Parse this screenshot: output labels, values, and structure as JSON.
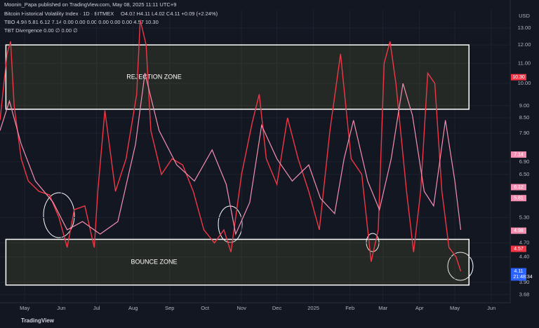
{
  "chart_data": {
    "type": "line",
    "header": {
      "publisher": "Moonin_Papa published on TradingView.com, May 08, 2025 11:11 UTC+9",
      "symbol": "Bitcoin Historical Volatility Index · 1D · BITMEX",
      "ohlc": "O4.02 H4.11 L4.02 C4.11 +0.09 (+2.24%)",
      "tbo": "TBO 4.98 5.81 6.12 7.14 0.00 0.00 0.00 0.00 0.00 0.00 4.57 10.30",
      "tbt": "TBT Divergence 0.00 ∅ 0.00 ∅"
    },
    "currency": "USD",
    "footer": "TradingView",
    "log_scale": true,
    "grid": true,
    "xlim": [
      0,
      433
    ],
    "ylim": [
      3.54,
      14.17
    ],
    "xticks": [
      {
        "value": 21,
        "label": "May"
      },
      {
        "value": 52,
        "label": "Jun"
      },
      {
        "value": 82,
        "label": "Jul"
      },
      {
        "value": 113,
        "label": "Aug"
      },
      {
        "value": 144,
        "label": "Sep"
      },
      {
        "value": 174,
        "label": "Oct"
      },
      {
        "value": 205,
        "label": "Nov"
      },
      {
        "value": 235,
        "label": "Dec"
      },
      {
        "value": 266,
        "label": "2025"
      },
      {
        "value": 297,
        "label": "Feb"
      },
      {
        "value": 325,
        "label": "Mar"
      },
      {
        "value": 356,
        "label": "Apr"
      },
      {
        "value": 386,
        "label": "May"
      },
      {
        "value": 417,
        "label": "Jun"
      }
    ],
    "yticks": [
      {
        "value": 3.68,
        "label": "3.68"
      },
      {
        "value": 3.9,
        "label": "3.90"
      },
      {
        "value": 4.4,
        "label": "4.40"
      },
      {
        "value": 4.7,
        "label": "4.70"
      },
      {
        "value": 5.3,
        "label": "5.30"
      },
      {
        "value": 6.5,
        "label": "6.50"
      },
      {
        "value": 6.9,
        "label": "6.90"
      },
      {
        "value": 7.9,
        "label": "7.90"
      },
      {
        "value": 8.5,
        "label": "8.50"
      },
      {
        "value": 9,
        "label": "9.00"
      },
      {
        "value": 10,
        "label": "10.00"
      },
      {
        "value": 11,
        "label": "11.00"
      },
      {
        "value": 12,
        "label": "12.00"
      },
      {
        "value": 13,
        "label": "13.00"
      }
    ],
    "zones": [
      {
        "label": "REJECTION ZONE",
        "x": [
          5,
          398
        ],
        "y": [
          8.85,
          12.0
        ]
      },
      {
        "label": "BOUNCE ZONE",
        "x": [
          5,
          398
        ],
        "y": [
          3.85,
          4.78
        ]
      }
    ],
    "series": [
      {
        "color": "#f23645",
        "x": [
          0,
          6,
          9,
          12,
          18,
          24,
          33,
          42,
          50,
          57,
          63,
          72,
          80,
          83,
          89,
          98,
          107,
          116,
          119,
          124,
          128,
          137,
          146,
          155,
          164,
          173,
          182,
          190,
          196,
          205,
          214,
          220,
          226,
          235,
          244,
          253,
          262,
          271,
          280,
          289,
          298,
          307,
          315,
          321,
          326,
          331,
          336,
          345,
          351,
          357,
          363,
          369,
          375,
          381,
          387,
          391
        ],
        "values": [
          8.4,
          11.5,
          12.2,
          9.0,
          7.0,
          6.3,
          6.0,
          5.9,
          5.3,
          4.6,
          5.5,
          5.6,
          4.6,
          6.0,
          8.8,
          6.0,
          7.0,
          9.5,
          13.5,
          12.0,
          8.0,
          6.5,
          7.0,
          6.8,
          6.0,
          5.0,
          4.7,
          5.0,
          4.5,
          6.5,
          8.3,
          9.5,
          7.0,
          6.2,
          8.5,
          7.0,
          6.0,
          5.0,
          8.0,
          11.5,
          7.0,
          6.5,
          4.3,
          5.0,
          11.0,
          12.2,
          10.0,
          6.0,
          4.5,
          6.0,
          10.5,
          10.0,
          6.0,
          4.6,
          4.4,
          4.11
        ]
      },
      {
        "color": "#f48fb1",
        "x": [
          0,
          8,
          18,
          30,
          45,
          57,
          70,
          85,
          100,
          115,
          123,
          135,
          150,
          165,
          180,
          192,
          200,
          212,
          222,
          235,
          248,
          262,
          272,
          284,
          292,
          300,
          312,
          322,
          332,
          342,
          350,
          360,
          368,
          378,
          386,
          391
        ],
        "values": [
          8.0,
          9.2,
          7.5,
          6.3,
          5.7,
          5.0,
          5.2,
          4.9,
          5.2,
          7.5,
          10.5,
          8.0,
          6.8,
          6.3,
          7.3,
          6.2,
          4.9,
          5.7,
          8.2,
          7.0,
          6.3,
          6.8,
          5.8,
          5.4,
          7.0,
          8.4,
          6.3,
          5.5,
          7.0,
          10.0,
          8.6,
          6.0,
          5.6,
          8.4,
          6.3,
          5.0
        ]
      }
    ],
    "price_tags": [
      {
        "value": 10.3,
        "label": "10.30",
        "color": "#f23645"
      },
      {
        "value": 7.14,
        "label": "7.14",
        "color": "#f48fb1"
      },
      {
        "value": 6.12,
        "label": "6.12",
        "color": "#f48fb1"
      },
      {
        "value": 5.81,
        "label": "5.81",
        "color": "#f48fb1"
      },
      {
        "value": 4.98,
        "label": "4.98",
        "color": "#f48fb1"
      },
      {
        "value": 4.57,
        "label": "4.57",
        "color": "#f23645"
      },
      {
        "value": 4.11,
        "label": "4.11",
        "color": "#2962ff"
      }
    ],
    "countdown": "21:48:34"
  }
}
